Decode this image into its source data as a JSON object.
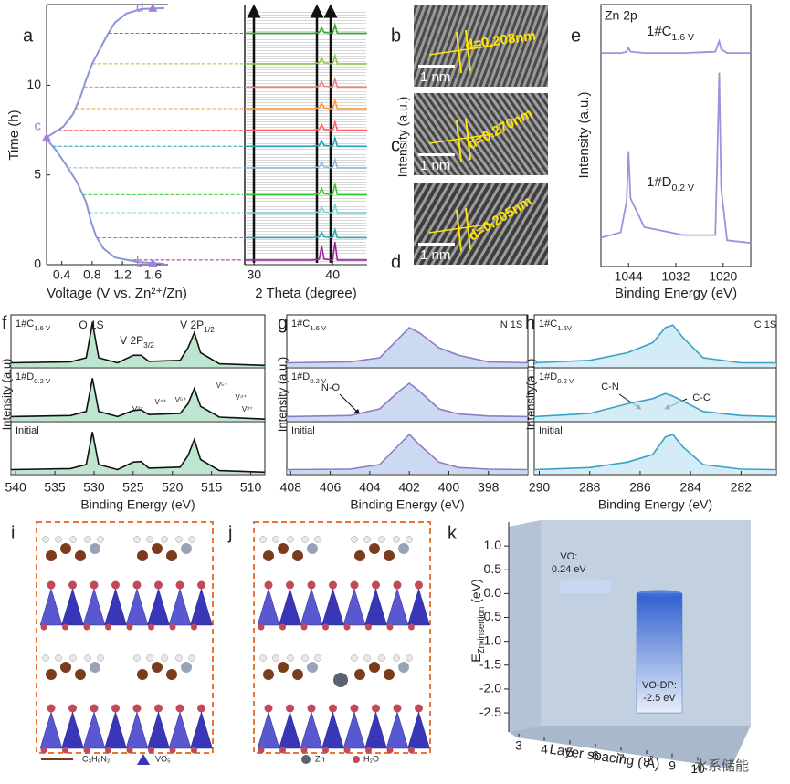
{
  "chart_data": [
    {
      "type": "line",
      "label": "a",
      "x_label": "Voltage (V vs. Zn²⁺/Zn)",
      "y_label": "Time (h)",
      "xlim": [
        0.2,
        1.8
      ],
      "xticks": [
        0.4,
        0.8,
        1.2,
        1.6
      ],
      "ylim": [
        0,
        14.5
      ],
      "yticks": [
        0,
        5,
        10
      ],
      "color": "#8a94d8",
      "x": [
        1.75,
        1.4,
        1.1,
        0.95,
        0.85,
        0.78,
        0.72,
        0.6,
        0.45,
        0.32,
        0.22,
        0.2,
        0.28,
        0.42,
        0.55,
        0.65,
        0.72,
        0.8,
        0.9,
        1.0,
        1.1,
        1.25,
        1.45,
        1.75
      ],
      "values": [
        0.05,
        0.15,
        0.4,
        0.9,
        1.6,
        2.5,
        3.5,
        4.6,
        5.6,
        6.4,
        6.9,
        7.1,
        7.3,
        7.7,
        8.4,
        9.4,
        10.3,
        11.2,
        12.0,
        12.8,
        13.5,
        14.0,
        14.25,
        14.3
      ],
      "markers": [
        {
          "label": "b",
          "x": 1.6,
          "y": 0.1
        },
        {
          "label": "c",
          "x": 0.2,
          "y": 7.1
        },
        {
          "label": "d",
          "x": 1.6,
          "y": 14.3
        }
      ],
      "marker_color": "#a57fe0"
    },
    {
      "type": "line",
      "x_label": "2 Theta (degree)",
      "xlim": [
        28.8,
        44.4
      ],
      "xticks": [
        30,
        40
      ],
      "ylim": [
        0,
        14.5
      ],
      "x": [
        28.8,
        37.5,
        38.3,
        38.6,
        38.9,
        40.0,
        40.3,
        40.6,
        44.4
      ],
      "series": [
        {
          "color": "#a020a0",
          "values": [
            0.26,
            0.26,
            0.31,
            1.06,
            0.31,
            0.26,
            1.26,
            0.26,
            0.26
          ]
        },
        {
          "color": "#20b0c0",
          "values": [
            1.5,
            1.5,
            1.55,
            1.8,
            1.55,
            1.5,
            1.95,
            1.5,
            1.5
          ]
        },
        {
          "color": "#7fd0e0",
          "values": [
            2.9,
            2.9,
            2.95,
            3.2,
            2.95,
            2.9,
            3.35,
            2.9,
            2.9
          ]
        },
        {
          "color": "#33cc33",
          "values": [
            3.9,
            3.9,
            3.95,
            4.25,
            3.95,
            3.9,
            4.5,
            3.9,
            3.9
          ]
        },
        {
          "color": "#8fb8e0",
          "values": [
            5.4,
            5.4,
            5.45,
            5.7,
            5.45,
            5.4,
            5.85,
            5.4,
            5.4
          ]
        },
        {
          "color": "#20a0b0",
          "values": [
            6.6,
            6.6,
            6.65,
            6.9,
            6.65,
            6.6,
            7.05,
            6.6,
            6.6
          ]
        },
        {
          "color": "#ff6060",
          "values": [
            7.5,
            7.5,
            7.55,
            7.8,
            7.55,
            7.5,
            7.95,
            7.5,
            7.5
          ]
        },
        {
          "color": "#ff9933",
          "values": [
            8.7,
            8.7,
            8.75,
            9.0,
            8.75,
            8.7,
            9.15,
            8.7,
            8.7
          ]
        },
        {
          "color": "#f08080",
          "values": [
            9.9,
            9.9,
            9.95,
            10.2,
            9.95,
            9.9,
            10.35,
            9.9,
            9.9
          ]
        },
        {
          "color": "#88cc44",
          "values": [
            11.2,
            11.2,
            11.25,
            11.5,
            11.25,
            11.2,
            11.65,
            11.2,
            11.2
          ]
        },
        {
          "color": "#33aa33",
          "values": [
            12.9,
            12.9,
            12.95,
            13.2,
            12.95,
            12.9,
            13.35,
            12.9,
            12.9
          ]
        }
      ]
    },
    {
      "type": "line",
      "label": "e",
      "subtitle": "Zn 2p",
      "x_label": "Binding Energy (eV)",
      "y_label": "Intensity (a.u.)",
      "xlim": [
        1051,
        1013
      ],
      "xticks": [
        1044,
        1032,
        1020
      ],
      "ylim": [
        0,
        10
      ],
      "x": [
        1051,
        1046,
        1044.5,
        1044,
        1043.5,
        1040,
        1030,
        1022,
        1021.5,
        1021,
        1020.5,
        1019,
        1013
      ],
      "series": [
        {
          "color": "#a58fdc",
          "values": [
            8.15,
            8.15,
            8.2,
            8.35,
            8.2,
            8.15,
            8.15,
            8.2,
            8.4,
            8.6,
            8.3,
            8.15,
            8.15
          ]
        },
        {
          "color": "#a58fdc",
          "values": [
            1.1,
            1.3,
            2.5,
            4.4,
            2.6,
            1.5,
            1.2,
            1.2,
            4,
            7.4,
            3,
            1.0,
            0.9
          ]
        }
      ],
      "annotations": [
        {
          "main": "1#C",
          "sub": "1.6 V"
        },
        {
          "main": "1#D",
          "sub": "0.2 V"
        }
      ]
    },
    {
      "type": "stacked-spectra",
      "label": "f",
      "x_label": "Binding Energy (eV)",
      "y_label": "Intensity (a.u)",
      "xlim": [
        540.6,
        508.2
      ],
      "xticks": [
        540,
        535,
        530,
        525,
        520,
        515,
        510
      ],
      "ylim": [
        0,
        10
      ],
      "color": "#111111",
      "fill": "#a8dcc0",
      "x": [
        540.6,
        533,
        531,
        530.2,
        529.4,
        527,
        525,
        524,
        523,
        519,
        518,
        517.2,
        516.4,
        514,
        508.2
      ],
      "panels": [
        {
          "tag": {
            "main": "1#C",
            "sub": "1.6 V"
          },
          "notes": [
            "O 1S",
            {
              "main": "V 2P",
              "sub": "3/2"
            },
            {
              "main": "V 2P",
              "sub": "1/2"
            }
          ],
          "values": [
            1,
            1.2,
            2,
            9,
            2,
            1,
            2.5,
            2.5,
            1.3,
            1.5,
            4,
            7,
            3,
            0.8,
            0.5
          ]
        },
        {
          "tag": {
            "main": "1#D",
            "sub": "0.2 V"
          },
          "notes": [
            "V³⁺",
            "V⁴⁺",
            "V⁵⁺",
            "V⁵⁺",
            "V⁴⁺",
            "V³⁺"
          ],
          "values": [
            1,
            1.2,
            2,
            8.5,
            2,
            1,
            2.2,
            2.3,
            1.4,
            1.6,
            3.5,
            6.5,
            3,
            0.9,
            0.5
          ]
        },
        {
          "tag": "Initial",
          "notes": [],
          "values": [
            1,
            1.2,
            2,
            8.5,
            2,
            1,
            2.5,
            2.6,
            1.3,
            1.5,
            3.8,
            7,
            3,
            0.8,
            0.5
          ]
        }
      ]
    },
    {
      "type": "stacked-spectra",
      "label": "g",
      "x_label": "Binding Energy (eV)",
      "y_label": "Intensity (a.u.)",
      "xlim": [
        408.2,
        396
      ],
      "xticks": [
        408,
        406,
        404,
        402,
        400,
        398
      ],
      "ylim": [
        0,
        10
      ],
      "color": "#8e7cc3",
      "fill": "#b9cdee",
      "x": [
        408.2,
        405,
        403.5,
        402.5,
        402,
        401.5,
        400.5,
        399.5,
        398,
        396
      ],
      "panels": [
        {
          "tag": {
            "main": "1#C",
            "sub": "1.6 V"
          },
          "notes": [
            "N 1S"
          ],
          "values": [
            1,
            1.2,
            2,
            6,
            8,
            7,
            4,
            2.5,
            1.2,
            1
          ]
        },
        {
          "tag": {
            "main": "1#D",
            "sub": "0.2 V"
          },
          "notes": [
            "N-O"
          ],
          "values": [
            1,
            1.2,
            2.5,
            6,
            7.5,
            6,
            2.5,
            1.5,
            1.1,
            1
          ]
        },
        {
          "tag": "Initial",
          "notes": [],
          "values": [
            1,
            1.1,
            2,
            6,
            8,
            6,
            2.5,
            1.4,
            1.1,
            1
          ]
        }
      ]
    },
    {
      "type": "stacked-spectra",
      "label": "h",
      "x_label": "Binding Energy (eV)",
      "y_label": "Intensity(a.u.)",
      "xlim": [
        290.2,
        280.6
      ],
      "xticks": [
        290,
        288,
        286,
        284,
        282
      ],
      "ylim": [
        0,
        10
      ],
      "color": "#3aa0c8",
      "fill": "#c4e6f2",
      "x": [
        290.2,
        288,
        286.5,
        285.5,
        285,
        284.7,
        284.3,
        283.5,
        282,
        280.6
      ],
      "panels": [
        {
          "tag": {
            "main": "1#C",
            "sub": "1.6V"
          },
          "notes": [
            "C 1S"
          ],
          "values": [
            1,
            1.5,
            3,
            5,
            8,
            8.5,
            6,
            2,
            1,
            1
          ]
        },
        {
          "tag": {
            "main": "1#D",
            "sub": "0.2 V"
          },
          "notes": [
            "C-N",
            "C-C"
          ],
          "values": [
            1,
            1.6,
            3.5,
            4.5,
            5.5,
            5,
            4,
            2,
            1.2,
            1
          ]
        },
        {
          "tag": "Initial",
          "notes": [],
          "values": [
            1,
            1.4,
            2.5,
            4,
            7.5,
            8,
            5.5,
            2,
            1.1,
            1
          ]
        }
      ]
    },
    {
      "type": "bar3d",
      "label": "k",
      "x_label": "Layer spacing ( Å)",
      "y_label": {
        "main": "E",
        "sub": "Zn-insertion",
        "tail": " (eV)"
      },
      "xlim": [
        3,
        11
      ],
      "xticks": [
        3,
        4,
        5,
        6,
        7,
        8,
        9,
        10
      ],
      "ylim": [
        -2.7,
        1.5
      ],
      "yticks": [
        {
          "value": 1,
          "label": "1.0"
        },
        0.5,
        {
          "value": 0,
          "label": "0.0"
        },
        -0.5,
        {
          "value": -1,
          "label": "-1.0"
        },
        -1.5,
        {
          "value": -2,
          "label": "-2.0"
        },
        -2.5
      ],
      "categories": [
        "VO:",
        "VO-DP:"
      ],
      "x": [
        5.6,
        8.5
      ],
      "values": [
        0.24,
        -2.5
      ],
      "value_labels": [
        "0.24 eV",
        "-2.5 eV"
      ],
      "colors": [
        "#c6d8f4",
        "#3f6fd8"
      ],
      "watermark": "水系储能"
    }
  ],
  "tem": [
    {
      "label": "b",
      "spacing": "d=0.208nm",
      "scale": "1 nm"
    },
    {
      "label": "c",
      "spacing": "d=0.270nm",
      "scale": "1 nm"
    },
    {
      "label": "d",
      "spacing": "d=0.205nm",
      "scale": "1 nm"
    }
  ],
  "stray_label": "Intensity (a.u.)",
  "structures": [
    {
      "label": "i",
      "legend": [
        "C₃H₈N₂",
        "VO₅"
      ]
    },
    {
      "label": "j",
      "legend": [
        "Zn",
        "H₂O"
      ]
    }
  ]
}
